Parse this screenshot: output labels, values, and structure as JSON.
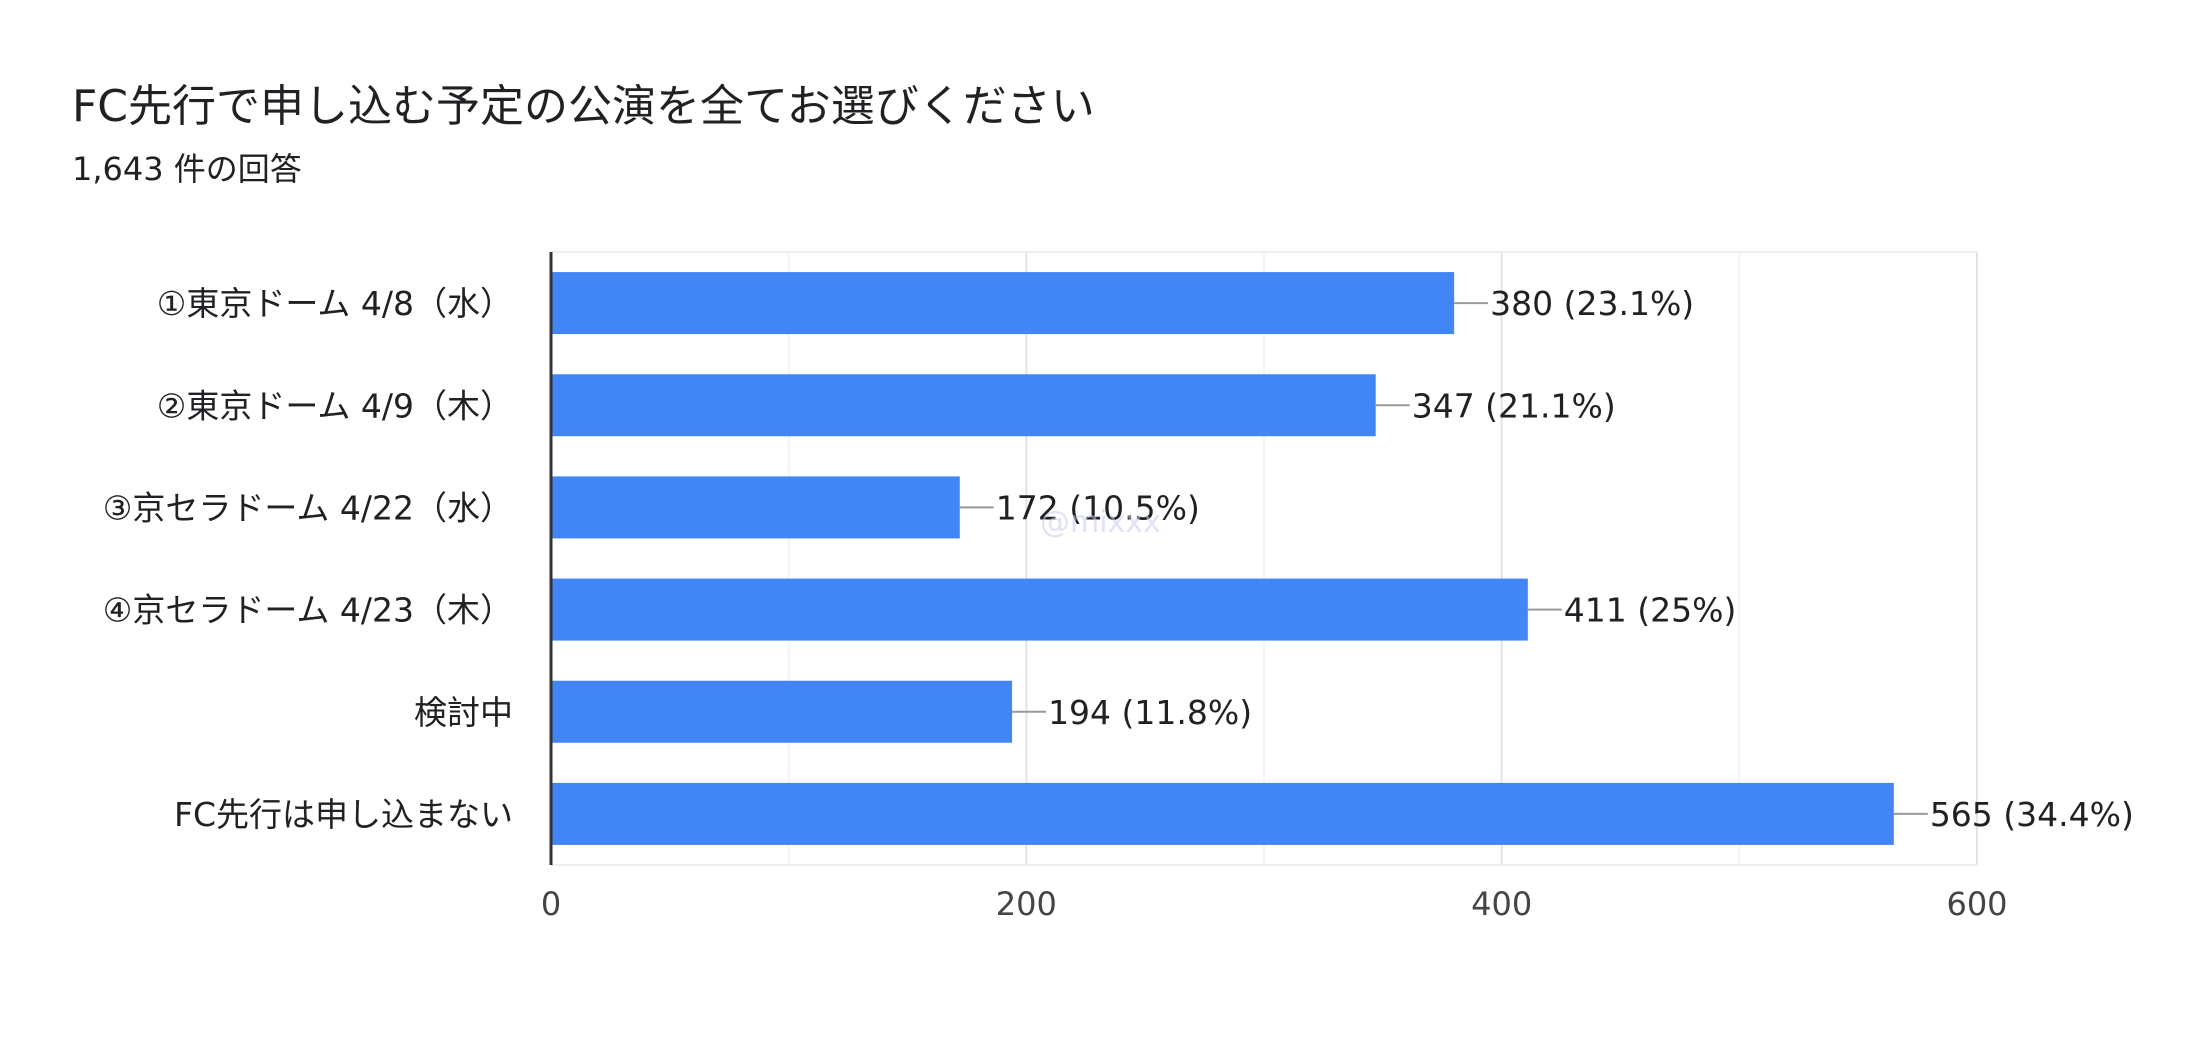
{
  "chart_data": {
    "type": "bar",
    "orientation": "horizontal",
    "title": "FC先行で申し込む予定の公演を全てお選びください",
    "subtitle": "1,643 件の回答",
    "categories": [
      "①東京ドーム 4/8（水）",
      "②東京ドーム 4/9（木）",
      "③京セラドーム 4/22（水）",
      "④京セラドーム 4/23（木）",
      "検討中",
      "FC先行は申し込まない"
    ],
    "values": [
      380,
      347,
      172,
      411,
      194,
      565
    ],
    "data_labels": [
      "380 (23.1%)",
      "347 (21.1%)",
      "172 (10.5%)",
      "411 (25%)",
      "194 (11.8%)",
      "565 (34.4%)"
    ],
    "xlim": [
      0,
      600
    ],
    "xticks": [
      0,
      200,
      400,
      600
    ],
    "grid": true,
    "bar_color": "#4285f4",
    "watermark": "@mixxx"
  }
}
